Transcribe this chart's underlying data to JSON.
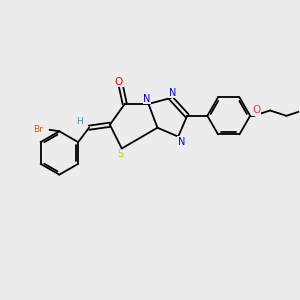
{
  "bg_color": "#ececec",
  "bond_color": "#000000",
  "atom_colors": {
    "O": "#ff0000",
    "N": "#0000ee",
    "S": "#cccc00",
    "Br": "#cc6600",
    "H": "#339999",
    "O_ether": "#ff3333"
  },
  "line_width": 1.3,
  "figsize": [
    3.0,
    3.0
  ],
  "dpi": 100,
  "xlim": [
    0,
    10
  ],
  "ylim": [
    0,
    10
  ]
}
